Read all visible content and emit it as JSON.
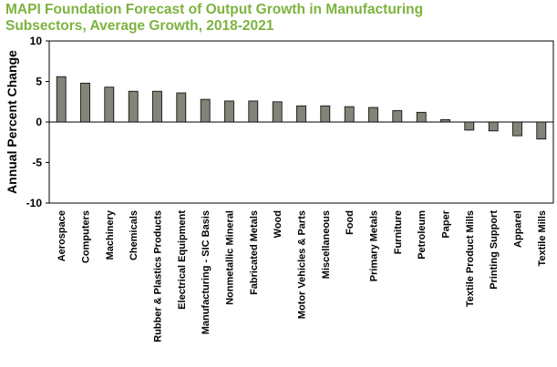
{
  "chart_data": {
    "type": "bar",
    "title_line1": "MAPI Foundation Forecast of Output Growth in Manufacturing",
    "title_line2": "Subsectors, Average Growth, 2018-2021",
    "xlabel": "",
    "ylabel": "Annual Percent Change",
    "ylim": [
      -10,
      10
    ],
    "yticks": [
      10,
      5,
      0,
      -5,
      -10
    ],
    "grid": false,
    "categories": [
      "Aerospace",
      "Computers",
      "Machinery",
      "Chemicals",
      "Rubber & Plastics Products",
      "Electrical Equipment",
      "Manufacturing - SIC Basis",
      "Nonmetallic Mineral",
      "Fabricated Metals",
      "Wood",
      "Motor Vehicles & Parts",
      "Miscellaneous",
      "Food",
      "Primary Metals",
      "Furniture",
      "Petroleum",
      "Paper",
      "Textile Product Mills",
      "Printing Support",
      "Apparel",
      "Textile Mills"
    ],
    "values": [
      5.6,
      4.8,
      4.3,
      3.8,
      3.8,
      3.6,
      2.8,
      2.6,
      2.6,
      2.5,
      2.0,
      2.0,
      1.9,
      1.8,
      1.4,
      1.2,
      0.3,
      -1.0,
      -1.1,
      -1.7,
      -2.1
    ],
    "bar_color": "#808577",
    "title_color": "#7db33f"
  }
}
